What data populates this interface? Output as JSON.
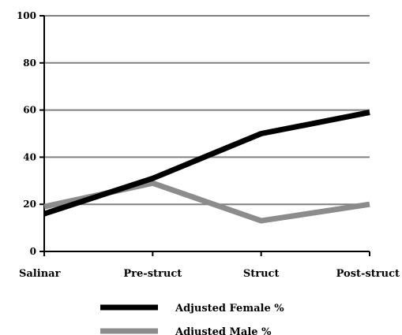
{
  "chart_data": {
    "type": "line",
    "categories": [
      "Salinar",
      "Pre-struct",
      "Struct",
      "Post-struct"
    ],
    "series": [
      {
        "name": "Adjusted Female %",
        "values": [
          16,
          31,
          50,
          59
        ],
        "color": "#000000"
      },
      {
        "name": "Adjusted Male %",
        "values": [
          19,
          29,
          13,
          20
        ],
        "color": "#8c8c8c"
      }
    ],
    "yticks": [
      "0",
      "20",
      "40",
      "60",
      "80",
      "100"
    ],
    "ylim": [
      0,
      100
    ],
    "grid": true,
    "legend_position": "bottom-center",
    "title": "",
    "xlabel": "",
    "ylabel": ""
  }
}
